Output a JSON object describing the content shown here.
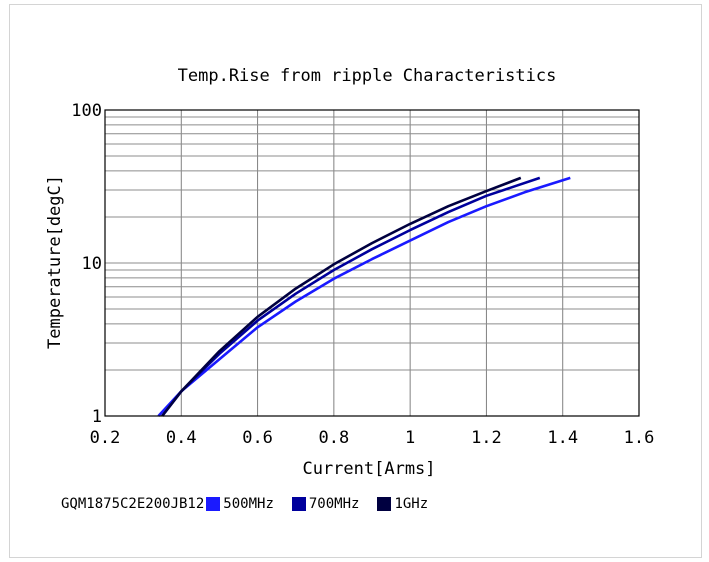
{
  "chart_data": {
    "type": "line",
    "title": "Temp.Rise from ripple Characteristics",
    "xlabel": "Current[Arms]",
    "ylabel": "Temperature[degC]",
    "xlim": [
      0.2,
      1.6
    ],
    "ylim": [
      1,
      100
    ],
    "yscale": "log",
    "grid": true,
    "x_ticks": [
      "0.2",
      "0.4",
      "0.6",
      "0.8",
      "1",
      "1.2",
      "1.4",
      "1.6"
    ],
    "y_ticks": [
      "1",
      "10",
      "100"
    ],
    "legend_prefix": "GQM1875C2E200JB12",
    "legend_position": "bottom-left",
    "series": [
      {
        "name": "500MHz",
        "color": "#1a1aff",
        "points": [
          [
            0.34,
            1.0
          ],
          [
            0.4,
            1.45
          ],
          [
            0.5,
            2.35
          ],
          [
            0.6,
            3.8
          ],
          [
            0.7,
            5.6
          ],
          [
            0.8,
            7.9
          ],
          [
            0.9,
            10.6
          ],
          [
            1.0,
            14.0
          ],
          [
            1.1,
            18.5
          ],
          [
            1.2,
            23.5
          ],
          [
            1.3,
            29.0
          ],
          [
            1.42,
            36.0
          ]
        ]
      },
      {
        "name": "700MHz",
        "color": "#00009c",
        "points": [
          [
            0.35,
            1.0
          ],
          [
            0.4,
            1.45
          ],
          [
            0.5,
            2.55
          ],
          [
            0.6,
            4.2
          ],
          [
            0.7,
            6.3
          ],
          [
            0.8,
            9.0
          ],
          [
            0.9,
            12.3
          ],
          [
            1.0,
            16.4
          ],
          [
            1.1,
            21.5
          ],
          [
            1.2,
            27.5
          ],
          [
            1.34,
            36.0
          ]
        ]
      },
      {
        "name": "1GHz",
        "color": "#000040",
        "points": [
          [
            0.35,
            1.0
          ],
          [
            0.4,
            1.45
          ],
          [
            0.5,
            2.65
          ],
          [
            0.6,
            4.45
          ],
          [
            0.7,
            6.8
          ],
          [
            0.8,
            9.8
          ],
          [
            0.9,
            13.5
          ],
          [
            1.0,
            18.0
          ],
          [
            1.1,
            23.5
          ],
          [
            1.2,
            29.5
          ],
          [
            1.29,
            36.0
          ]
        ]
      }
    ]
  }
}
